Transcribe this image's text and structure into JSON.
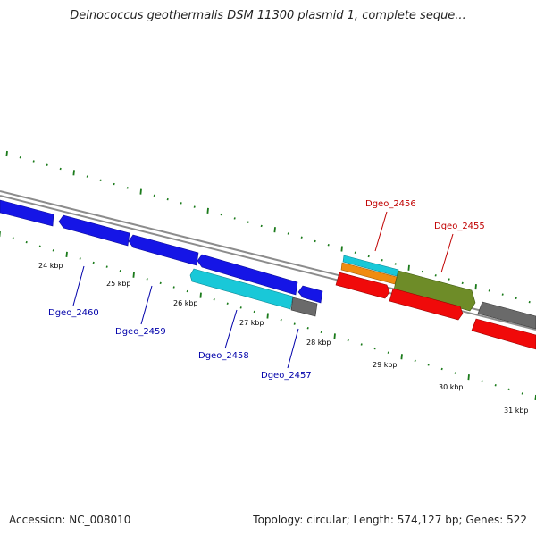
{
  "title": "Deinococcus geothermalis DSM 11300 plasmid 1, complete seque...",
  "accession": "Accession: NC_008010",
  "summary": "Topology: circular; Length: 574,127 bp; Genes: 522",
  "colors": {
    "backbone": "#8c8c8c",
    "tick": "#1a7a1a",
    "label_forward": "#c00000",
    "label_reverse": "#0000aa",
    "blue": "#1515e6",
    "cyan": "#19c8d8",
    "gray": "#6a6a6a",
    "orange": "#f08c10",
    "olive": "#6e8c28",
    "red": "#f00a0a"
  },
  "kbp_labels": [
    "24 kbp",
    "25 kbp",
    "26 kbp",
    "27 kbp",
    "28 kbp",
    "29 kbp",
    "30 kbp",
    "31 kbp"
  ],
  "gene_labels": {
    "g2456": "Dgeo_2456",
    "g2455": "Dgeo_2455",
    "g2460": "Dgeo_2460",
    "g2459": "Dgeo_2459",
    "g2458": "Dgeo_2458",
    "g2457": "Dgeo_2457"
  }
}
